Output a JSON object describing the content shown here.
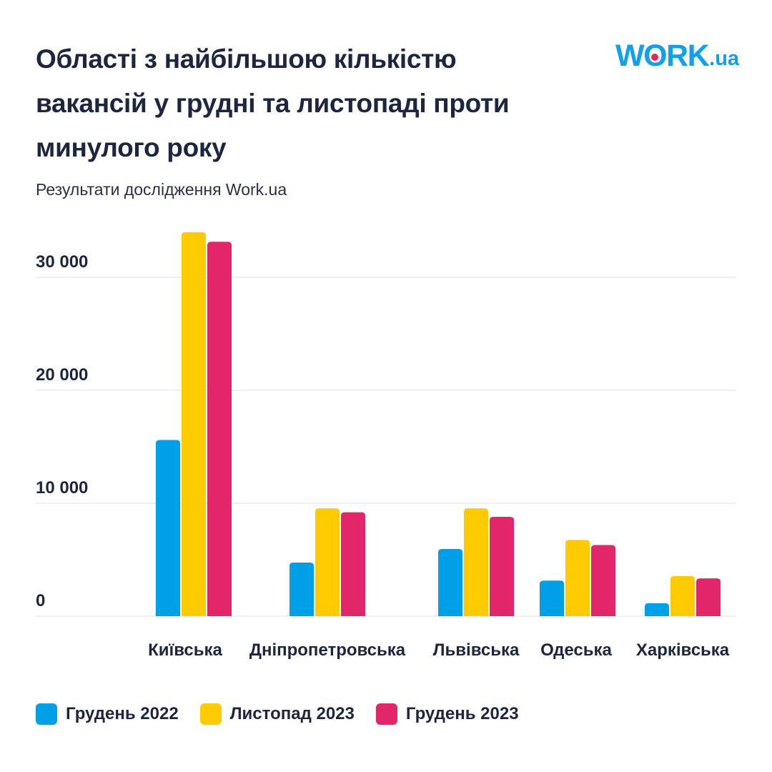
{
  "header": {
    "title_lines": [
      "Області з найбільшою кількістю",
      "вакансій у грудні та листопаді проти",
      "минулого року"
    ],
    "subtitle": "Результати дослідження Work.ua",
    "logo": {
      "main_prefix": "W",
      "main_o": "O",
      "main_suffix": "RK",
      "suffix": ".ua",
      "text": "WORK.ua"
    }
  },
  "colors": {
    "series_blue": "#00a0e9",
    "series_yellow": "#ffcb00",
    "series_pink": "#e3266a",
    "gridline": "#e0e0e0",
    "text": "#1c2640"
  },
  "chart_data": {
    "type": "bar",
    "title": "Області з найбільшою кількістю вакансій у грудні та листопаді проти минулого року",
    "subtitle": "Результати дослідження Work.ua",
    "xlabel": "",
    "ylabel": "",
    "categories": [
      "Київська",
      "Дніпропетровська",
      "Львівська",
      "Одеська",
      "Харківська"
    ],
    "series": [
      {
        "name": "Грудень 2022",
        "color": "#00a0e9",
        "values": [
          15600,
          4750,
          5950,
          3150,
          1150
        ]
      },
      {
        "name": "Листопад 2023",
        "color": "#ffcb00",
        "values": [
          34000,
          9550,
          9550,
          6750,
          3550
        ]
      },
      {
        "name": "Грудень 2023",
        "color": "#e3266a",
        "values": [
          33150,
          9200,
          8800,
          6300,
          3350
        ]
      }
    ],
    "ylim": [
      0,
      35000
    ],
    "yticks": [
      0,
      10000,
      20000,
      30000
    ],
    "ytick_labels": [
      "0",
      "10 000",
      "20 000",
      "30 000"
    ],
    "grid": true,
    "legend": "bottom-left"
  }
}
